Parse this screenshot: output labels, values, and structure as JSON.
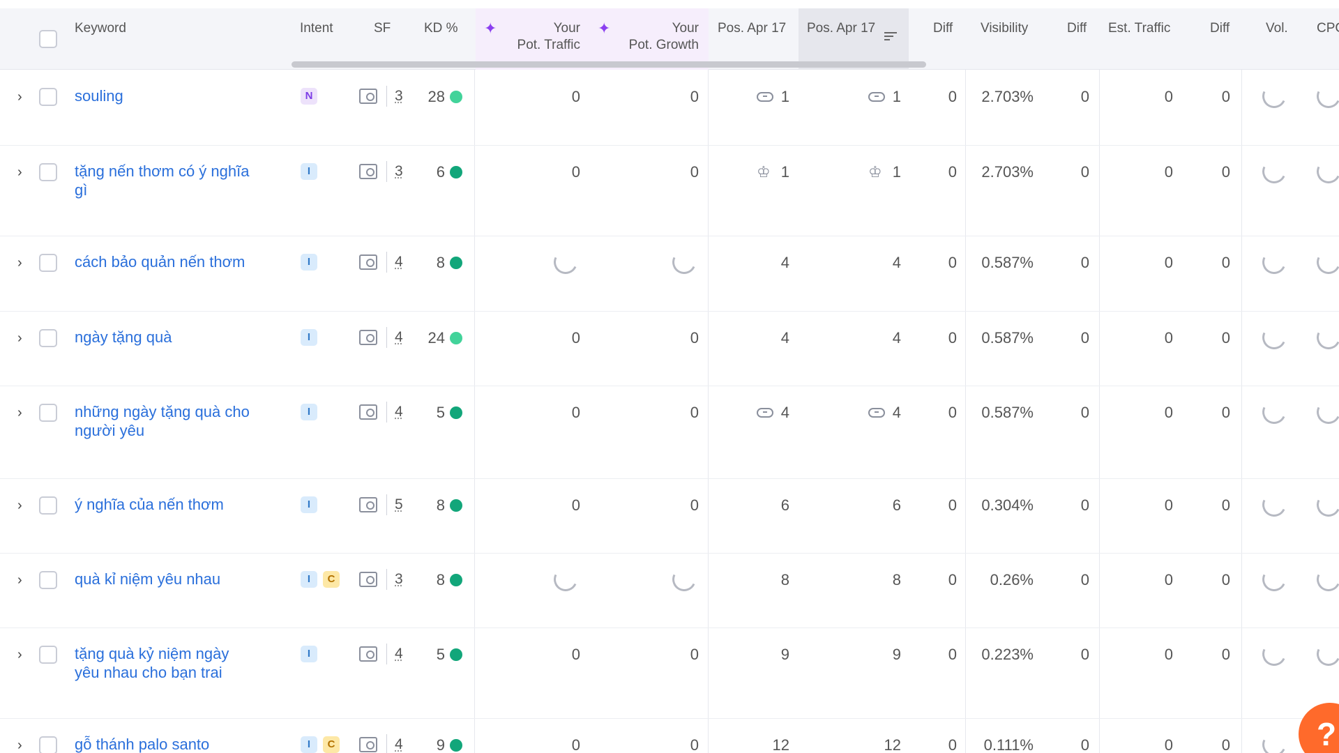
{
  "header": {
    "keyword": "Keyword",
    "intent": "Intent",
    "sf": "SF",
    "kd": "KD %",
    "pot_traffic_1": "Your",
    "pot_traffic_2": "Pot. Traffic",
    "pot_growth_1": "Your",
    "pot_growth_2": "Pot. Growth",
    "pos1": "Pos. Apr 17",
    "pos2": "Pos. Apr 17",
    "diff1": "Diff",
    "visibility": "Visibility",
    "diff2": "Diff",
    "est_traffic": "Est. Traffic",
    "diff3": "Diff",
    "vol": "Vol.",
    "cpc": "CPC"
  },
  "rows": [
    {
      "keyword_l1": "souling",
      "keyword_l2": "",
      "intents": [
        "N"
      ],
      "sf": "3",
      "kd": "28",
      "kd_color": "#42d39a",
      "pot_traffic": "0",
      "pot_growth": "0",
      "pos1_icon": "link",
      "pos1": "1",
      "pos2_icon": "link",
      "pos2": "1",
      "diff1": "0",
      "visibility": "2.703%",
      "diff2": "0",
      "est_traffic": "0",
      "diff3": "0"
    },
    {
      "keyword_l1": "tặng nến thơm có ý nghĩa",
      "keyword_l2": "gì",
      "intents": [
        "I"
      ],
      "sf": "3",
      "kd": "6",
      "kd_color": "#12a67a",
      "pot_traffic": "0",
      "pot_growth": "0",
      "pos1_icon": "crown",
      "pos1": "1",
      "pos2_icon": "crown",
      "pos2": "1",
      "diff1": "0",
      "visibility": "2.703%",
      "diff2": "0",
      "est_traffic": "0",
      "diff3": "0"
    },
    {
      "keyword_l1": "cách bảo quản nến thơm",
      "keyword_l2": "",
      "intents": [
        "I"
      ],
      "sf": "4",
      "kd": "8",
      "kd_color": "#12a67a",
      "pot_traffic": null,
      "pot_growth": null,
      "pos1_icon": "",
      "pos1": "4",
      "pos2_icon": "",
      "pos2": "4",
      "diff1": "0",
      "visibility": "0.587%",
      "diff2": "0",
      "est_traffic": "0",
      "diff3": "0"
    },
    {
      "keyword_l1": "ngày tặng quà",
      "keyword_l2": "",
      "intents": [
        "I"
      ],
      "sf": "4",
      "kd": "24",
      "kd_color": "#42d39a",
      "pot_traffic": "0",
      "pot_growth": "0",
      "pos1_icon": "",
      "pos1": "4",
      "pos2_icon": "",
      "pos2": "4",
      "diff1": "0",
      "visibility": "0.587%",
      "diff2": "0",
      "est_traffic": "0",
      "diff3": "0"
    },
    {
      "keyword_l1": "những ngày tặng quà cho",
      "keyword_l2": "người yêu",
      "intents": [
        "I"
      ],
      "sf": "4",
      "kd": "5",
      "kd_color": "#12a67a",
      "pot_traffic": "0",
      "pot_growth": "0",
      "pos1_icon": "link",
      "pos1": "4",
      "pos2_icon": "link",
      "pos2": "4",
      "diff1": "0",
      "visibility": "0.587%",
      "diff2": "0",
      "est_traffic": "0",
      "diff3": "0"
    },
    {
      "keyword_l1": "ý nghĩa của nến thơm",
      "keyword_l2": "",
      "intents": [
        "I"
      ],
      "sf": "5",
      "kd": "8",
      "kd_color": "#12a67a",
      "pot_traffic": "0",
      "pot_growth": "0",
      "pos1_icon": "",
      "pos1": "6",
      "pos2_icon": "",
      "pos2": "6",
      "diff1": "0",
      "visibility": "0.304%",
      "diff2": "0",
      "est_traffic": "0",
      "diff3": "0"
    },
    {
      "keyword_l1": "quà kỉ niệm yêu nhau",
      "keyword_l2": "",
      "intents": [
        "I",
        "C"
      ],
      "sf": "3",
      "kd": "8",
      "kd_color": "#12a67a",
      "pot_traffic": null,
      "pot_growth": null,
      "pos1_icon": "",
      "pos1": "8",
      "pos2_icon": "",
      "pos2": "8",
      "diff1": "0",
      "visibility": "0.26%",
      "diff2": "0",
      "est_traffic": "0",
      "diff3": "0"
    },
    {
      "keyword_l1": "tặng quà kỷ niệm ngày",
      "keyword_l2": "yêu nhau cho bạn trai",
      "intents": [
        "I"
      ],
      "sf": "4",
      "kd": "5",
      "kd_color": "#12a67a",
      "pot_traffic": "0",
      "pot_growth": "0",
      "pos1_icon": "",
      "pos1": "9",
      "pos2_icon": "",
      "pos2": "9",
      "diff1": "0",
      "visibility": "0.223%",
      "diff2": "0",
      "est_traffic": "0",
      "diff3": "0"
    },
    {
      "keyword_l1": "gỗ thánh palo santo",
      "keyword_l2": "",
      "intents": [
        "I",
        "C"
      ],
      "sf": "4",
      "kd": "9",
      "kd_color": "#12a67a",
      "pot_traffic": "0",
      "pot_growth": "0",
      "pos1_icon": "",
      "pos1": "12",
      "pos2_icon": "",
      "pos2": "12",
      "diff1": "0",
      "visibility": "0.111%",
      "diff2": "0",
      "est_traffic": "0",
      "diff3": "0"
    }
  ],
  "help": {
    "label": "?"
  }
}
